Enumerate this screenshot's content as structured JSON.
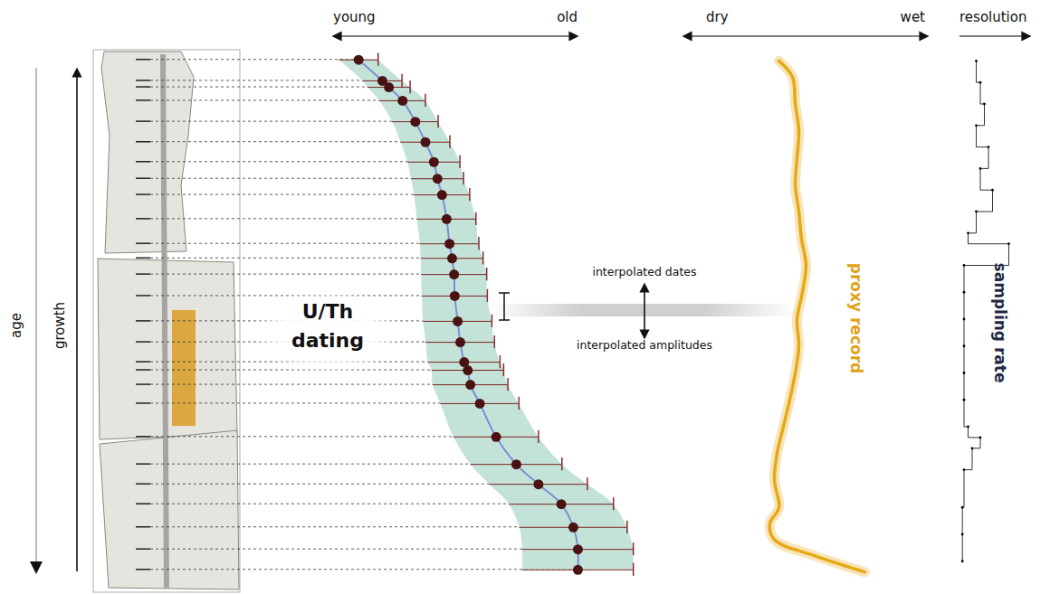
{
  "diagram": {
    "axes": [
      "age",
      "growth"
    ],
    "annotations": [
      "interpolated dates",
      "interpolated amplitudes"
    ]
  },
  "chart_data": [
    {
      "type": "scatter",
      "annotation": "U/Th dating",
      "xlabels": {
        "start": "young",
        "end": "old"
      },
      "x": [
        11.3,
        18.6,
        20.6,
        24.8,
        28.7,
        31.8,
        34.4,
        35.5,
        36.9,
        38.3,
        39.2,
        40.0,
        40.6,
        40.8,
        41.7,
        42.5,
        43.7,
        44.8,
        45.6,
        48.5,
        53.5,
        59.7,
        66.5,
        73.5,
        77.2,
        78.6,
        78.6
      ],
      "y": [
        1.8,
        5.7,
        6.9,
        9.4,
        13.3,
        17.1,
        20.8,
        23.9,
        26.9,
        31.4,
        36.0,
        38.7,
        41.7,
        45.7,
        50.4,
        54.3,
        58.0,
        59.5,
        62.2,
        65.7,
        71.9,
        77.0,
        80.7,
        84.4,
        88.7,
        92.8,
        96.6
      ],
      "x_error": [
        6,
        6,
        6.5,
        7,
        7,
        7.5,
        8,
        8,
        8.5,
        9,
        9,
        9.5,
        10,
        10,
        10.5,
        10.5,
        11,
        11,
        11.5,
        12,
        13,
        14,
        15,
        16,
        16.5,
        17,
        17
      ],
      "xlim": [
        0,
        100
      ],
      "ylim": [
        0,
        100
      ],
      "tick_labels": false,
      "color": "#4a1212"
    },
    {
      "type": "line",
      "annotation": "proxy record",
      "xlabels": {
        "start": "dry",
        "end": "wet"
      },
      "x": [
        30.6,
        38.9,
        40.6,
        42.8,
        41.7,
        40.6,
        42.8,
        44.4,
        47.2,
        45.0,
        41.7,
        42.8,
        40.6,
        37.2,
        33.3,
        29.4,
        27.8,
        30.6,
        25.0,
        27.8,
        52.8,
        83.3
      ],
      "y": [
        2,
        5,
        10,
        15,
        20,
        25,
        30,
        35,
        40,
        45,
        50,
        55,
        60,
        65,
        70,
        75,
        80,
        85,
        88,
        91,
        94,
        97
      ],
      "xlim": [
        0,
        100
      ],
      "ylim": [
        0,
        100
      ],
      "tick_labels": false,
      "color": "#e6a817"
    },
    {
      "type": "line",
      "marker": "dot",
      "annotation": "sampling rate",
      "xlabels": {
        "end": "resolution"
      },
      "x": [
        20,
        25,
        30,
        20,
        35,
        25,
        40,
        20,
        10,
        60,
        5,
        5,
        5,
        5,
        5,
        5,
        10,
        25,
        15,
        5,
        3,
        3,
        3
      ],
      "y": [
        2,
        6,
        10,
        14,
        18,
        22,
        26,
        30,
        34,
        36,
        40,
        45,
        50,
        55,
        60,
        65,
        70,
        72,
        74,
        78,
        85,
        90,
        95
      ],
      "xlim": [
        0,
        100
      ],
      "ylim": [
        0,
        100
      ],
      "tick_labels": false,
      "color": "#000000"
    }
  ]
}
